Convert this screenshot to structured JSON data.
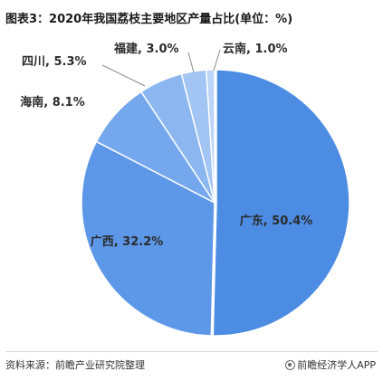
{
  "header": {
    "title": "图表3：2020年我国荔枝主要地区产量占比(单位：%)"
  },
  "footer": {
    "source": "资料来源：前瞻产业研究院整理",
    "brand": "前瞻经济学人APP"
  },
  "chart_data": {
    "type": "pie",
    "title": "图表3：2020年我国荔枝主要地区产量占比(单位：%)",
    "unit": "%",
    "start_angle_deg": 0,
    "direction": "clockwise",
    "slices": [
      {
        "label": "广东",
        "value": 50.4,
        "color": "#4c8ce3",
        "display": "广东, 50.4%"
      },
      {
        "label": "广西",
        "value": 32.2,
        "color": "#5d98e8",
        "display": "广西, 32.2%"
      },
      {
        "label": "海南",
        "value": 8.1,
        "color": "#74a7ec",
        "display": "海南, 8.1%"
      },
      {
        "label": "四川",
        "value": 5.3,
        "color": "#8bb6f0",
        "display": "四川, 5.3%"
      },
      {
        "label": "福建",
        "value": 3.0,
        "color": "#a3c5f3",
        "display": "福建, 3.0%"
      },
      {
        "label": "云南",
        "value": 1.0,
        "color": "#bbd4f7",
        "display": "云南, 1.0%"
      }
    ],
    "legend": "none",
    "label_style": "name, value%"
  }
}
